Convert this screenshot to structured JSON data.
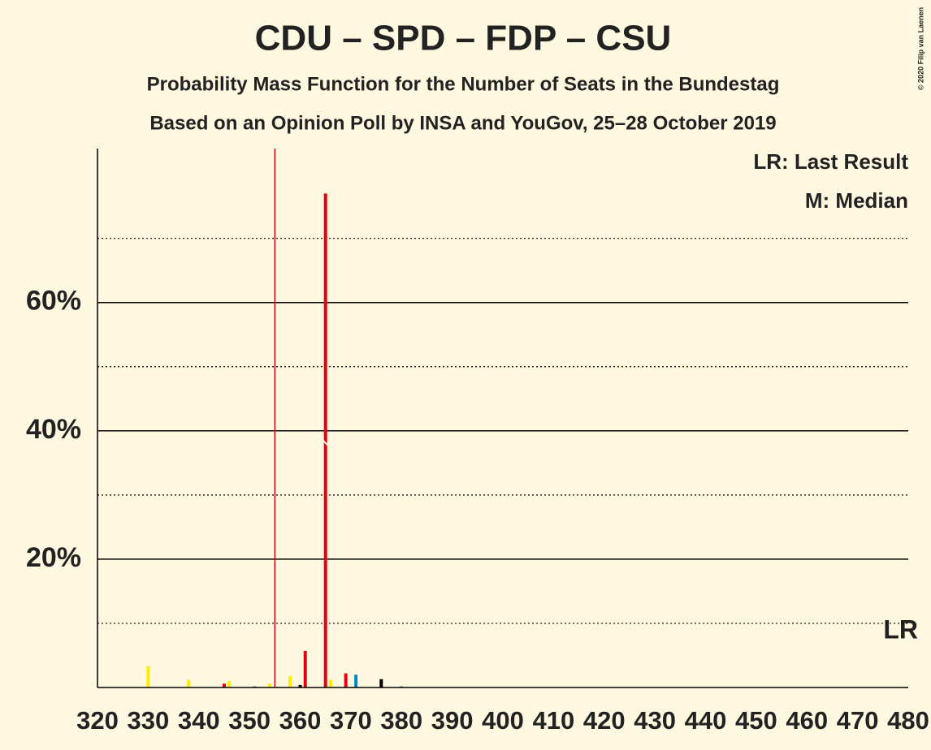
{
  "chart_data": {
    "type": "bar",
    "title": "CDU – SPD – FDP – CSU",
    "subtitle": "Probability Mass Function for the Number of Seats in the Bundestag",
    "subtitle2": "Based on an Opinion Poll by INSA and YouGov, 25–28 October 2019",
    "copyright": "© 2020 Filip van Laenen",
    "legend": [
      "LR: Last Result",
      "M: Median"
    ],
    "lr_label": "LR",
    "x": [
      330,
      338,
      345,
      346,
      351,
      354,
      358,
      360,
      361,
      365,
      366,
      369,
      371,
      376,
      380
    ],
    "values": [
      3.3,
      1.2,
      0.6,
      1.0,
      0.2,
      0.6,
      1.8,
      0.4,
      5.7,
      77,
      1.2,
      2.2,
      2.0,
      1.3,
      0.2
    ],
    "colors": [
      "#ffed00",
      "#ffed00",
      "#e3000f",
      "#ffed00",
      "#888888",
      "#ffed00",
      "#ffed00",
      "#000000",
      "#e3000f",
      "#e3000f",
      "#ffed00",
      "#e3000f",
      "#008ac5",
      "#000000",
      "#888888"
    ],
    "median": 365,
    "vline": 355,
    "xlim": [
      320,
      480
    ],
    "xticks": [
      320,
      330,
      340,
      350,
      360,
      370,
      380,
      390,
      400,
      410,
      420,
      430,
      440,
      450,
      460,
      470,
      480
    ],
    "ylim": [
      0,
      84
    ],
    "yticks": [
      {
        "value": 20,
        "label": "20%"
      },
      {
        "value": 40,
        "label": "40%"
      },
      {
        "value": 60,
        "label": "60%"
      }
    ],
    "minor_yticks": [
      10,
      30,
      50,
      70
    ],
    "grid": true
  }
}
